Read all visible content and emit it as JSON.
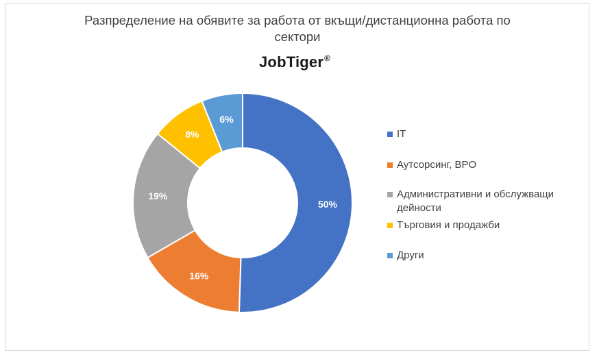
{
  "chart_data": {
    "type": "pie",
    "variant": "doughnut",
    "title_lines": [
      "Разпределение на обявите за работа от вкъщи/дистанционна работа по",
      "сектори"
    ],
    "logo_text": "JobTiger",
    "logo_mark": "®",
    "categories": [
      "IT",
      "Аутсорсинг, BPO",
      "Административни и обслужващи дейности",
      "Търговия и продажби",
      "Други"
    ],
    "values": [
      50,
      16,
      19,
      8,
      6
    ],
    "data_labels": [
      "50%",
      "16%",
      "19%",
      "8%",
      "6%"
    ],
    "colors": [
      "#4472c4",
      "#ed7d31",
      "#a5a5a5",
      "#ffc000",
      "#5b9bd5"
    ],
    "legend_position": "right"
  }
}
